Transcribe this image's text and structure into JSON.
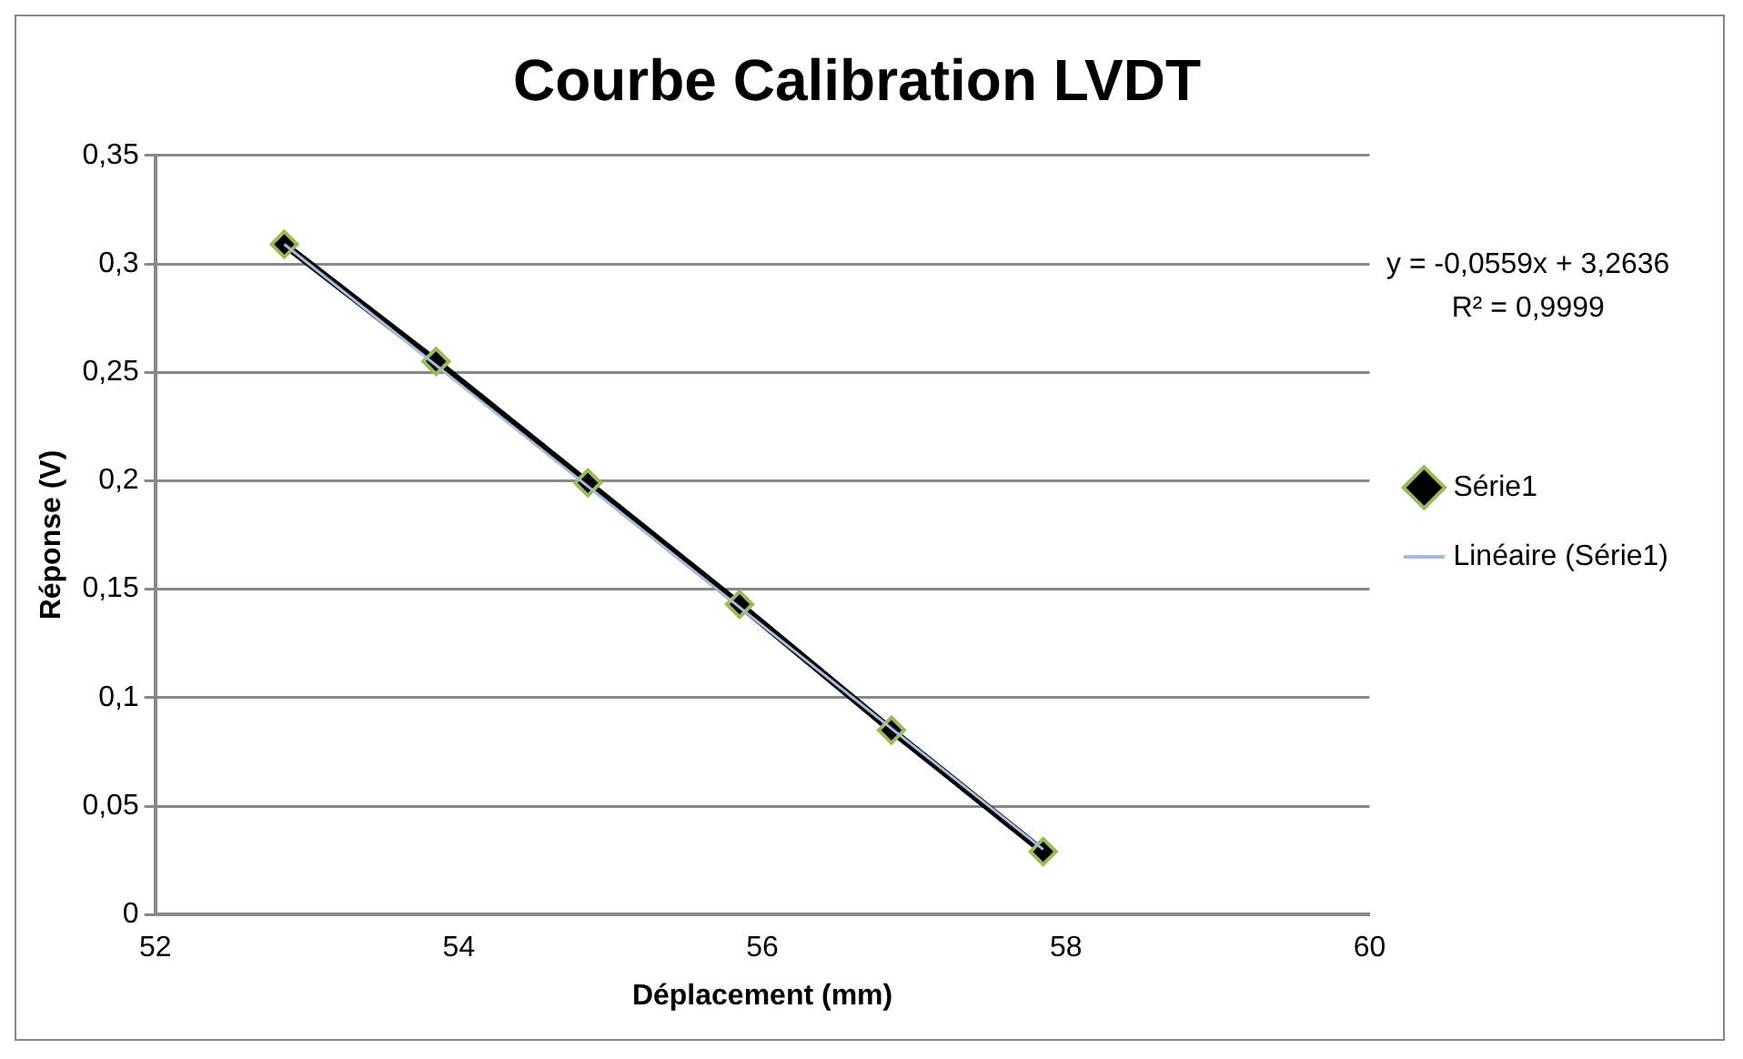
{
  "chart_data": {
    "type": "line",
    "title": "Courbe Calibration LVDT",
    "xlabel": "Déplacement (mm)",
    "ylabel": "Réponse (V)",
    "x": [
      52.85,
      53.85,
      54.85,
      55.85,
      56.85,
      57.85
    ],
    "series": [
      {
        "name": "Série1",
        "color": "#000000",
        "values": [
          0.309,
          0.255,
          0.199,
          0.143,
          0.085,
          0.029
        ],
        "marker": "diamond"
      },
      {
        "name": "Linéaire (Série1)",
        "type": "line",
        "color": "#a6bddb",
        "x": [
          52.85,
          57.85
        ],
        "values": [
          0.309,
          0.03
        ],
        "marker": "none"
      }
    ],
    "xlim": [
      52,
      60
    ],
    "xticks": [
      52,
      54,
      56,
      58,
      60
    ],
    "ylim": [
      0,
      0.35
    ],
    "yticks": [
      {
        "value": 0,
        "label": "0"
      },
      {
        "value": 0.05,
        "label": "0,05"
      },
      {
        "value": 0.1,
        "label": "0,1"
      },
      {
        "value": 0.15,
        "label": "0,15"
      },
      {
        "value": 0.2,
        "label": "0,2"
      },
      {
        "value": 0.25,
        "label": "0,25"
      },
      {
        "value": 0.3,
        "label": "0,3"
      },
      {
        "value": 0.35,
        "label": "0,35"
      }
    ],
    "grid": "y",
    "legend": "right",
    "annotations": [
      "y = -0,0559x + 3,2636",
      "R² = 0,9999"
    ]
  }
}
